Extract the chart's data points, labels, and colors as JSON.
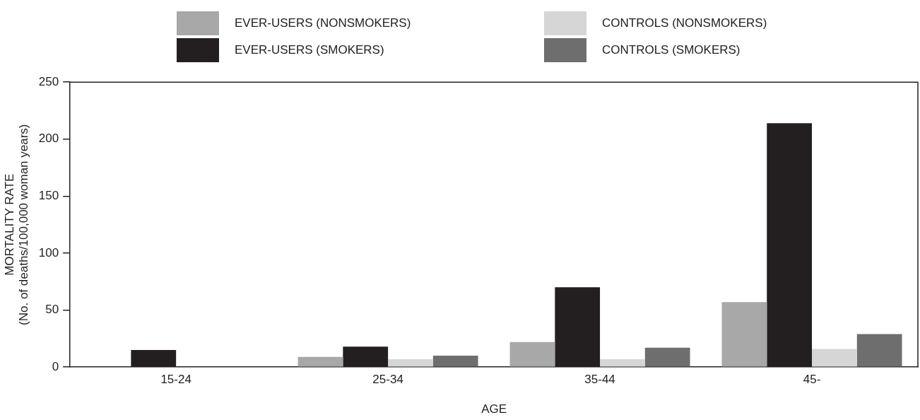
{
  "chart_data": {
    "type": "bar",
    "xlabel": "AGE",
    "ylabel": "MORTALITY RATE\n(No. of deaths/100,000 woman years)",
    "categories": [
      "15-24",
      "25-34",
      "35-44",
      "45-"
    ],
    "series": [
      {
        "name": "EVER-USERS (NONSMOKERS)",
        "color": "#a8a8a8",
        "values": [
          null,
          9,
          22,
          57
        ]
      },
      {
        "name": "EVER-USERS (SMOKERS)",
        "color": "#231f20",
        "values": [
          15,
          18,
          70,
          214
        ]
      },
      {
        "name": "CONTROLS (NONSMOKERS)",
        "color": "#d6d6d6",
        "values": [
          null,
          7,
          7,
          16
        ]
      },
      {
        "name": "CONTROLS (SMOKERS)",
        "color": "#6e6e6e",
        "values": [
          null,
          10,
          17,
          29
        ]
      }
    ],
    "ylim": [
      0,
      250
    ],
    "yticks": [
      0,
      50,
      100,
      150,
      200,
      250
    ],
    "grid": false,
    "legend": "top"
  }
}
